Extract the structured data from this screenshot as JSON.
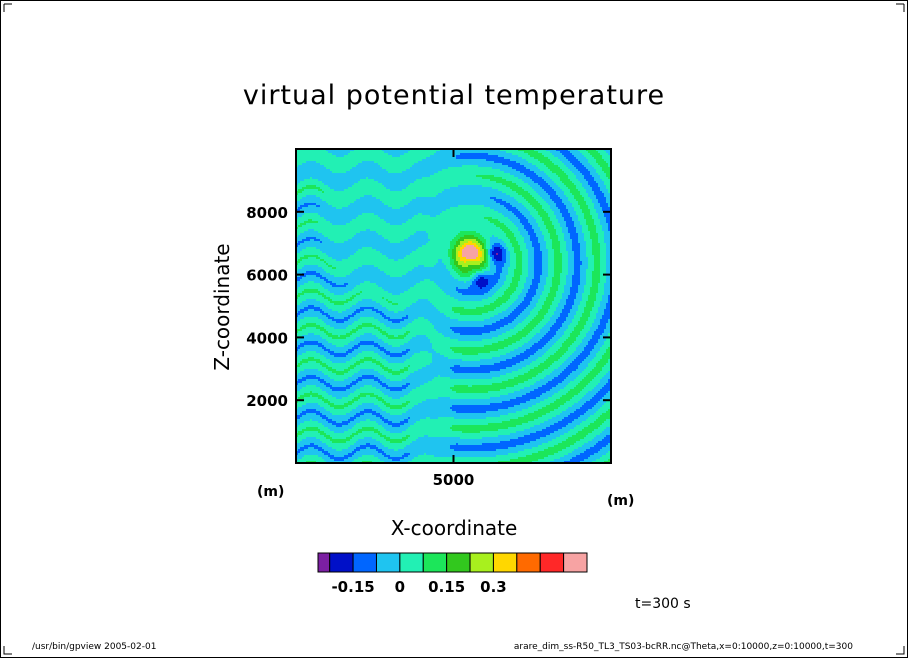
{
  "chart_data": {
    "type": "heatmap",
    "title": "virtual potential temperature",
    "xlabel": "X-coordinate",
    "ylabel": "Z-coordinate",
    "x_unit": "(m)",
    "y_unit": "(m)",
    "xlim": [
      0,
      10000
    ],
    "ylim": [
      0,
      10000
    ],
    "x_ticks": [
      5000
    ],
    "x_tick_labels": [
      "5000"
    ],
    "y_ticks": [
      2000,
      4000,
      6000,
      8000
    ],
    "y_tick_labels": [
      "2000",
      "4000",
      "6000",
      "8000"
    ],
    "colorbar": {
      "levels": [
        -0.225,
        -0.15,
        -0.075,
        0,
        0.075,
        0.15,
        0.225,
        0.3,
        0.375
      ],
      "colors": [
        "#7b1fa2",
        "#0010c8",
        "#0066ff",
        "#1fc4f0",
        "#22f0b4",
        "#1ce65a",
        "#32c81e",
        "#a8f01e",
        "#ffd700",
        "#ff6a00",
        "#ff2828",
        "#f7a3a3"
      ],
      "tick_values": [
        -0.15,
        0,
        0.15,
        0.3
      ],
      "tick_labels": [
        "-0.15",
        "0",
        "0.15",
        "0.3"
      ]
    },
    "features": [
      {
        "kind": "positive_anomaly",
        "x": 5500,
        "z": 6800,
        "peak": 0.4
      },
      {
        "kind": "negative_anomaly",
        "x": 6300,
        "z": 6700,
        "peak": -0.2
      },
      {
        "kind": "negative_anomaly",
        "x": 5800,
        "z": 5900,
        "peak": -0.2
      }
    ]
  },
  "annotations": {
    "time": "t=300 s"
  },
  "footer": {
    "left": "/usr/bin/gpview  2005-02-01",
    "right": "arare_dim_ss-R50_TL3_TS03-bcRR.nc@Theta,x=0:10000,z=0:10000,t=300"
  }
}
